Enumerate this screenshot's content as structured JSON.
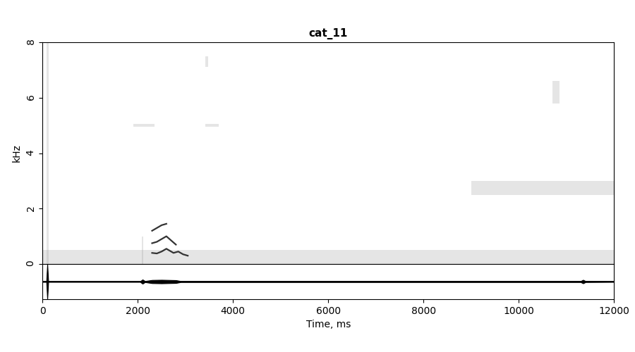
{
  "chart_data": {
    "type": "spectrogram",
    "title": "cat_11",
    "ylabel": "kHz",
    "xlabel": "Time, ms",
    "xlim": [
      0,
      12000
    ],
    "xticks": [
      0,
      2000,
      4000,
      6000,
      8000,
      10000,
      12000
    ],
    "ylim": [
      0,
      8
    ],
    "yticks": [
      0,
      2,
      4,
      6,
      8
    ],
    "tick_labels": "y",
    "color": "#333333",
    "contours": [
      {
        "x": [
          2300,
          2400,
          2500,
          2600,
          2700,
          2750,
          2850,
          2950,
          3050
        ],
        "values": [
          0.4,
          0.38,
          0.45,
          0.55,
          0.45,
          0.4,
          0.45,
          0.35,
          0.3
        ]
      },
      {
        "x": [
          2300,
          2400,
          2500,
          2600,
          2700,
          2800
        ],
        "values": [
          0.75,
          0.8,
          0.9,
          1.0,
          0.85,
          0.7
        ]
      },
      {
        "x": [
          2300,
          2400,
          2500,
          2600
        ],
        "values": [
          1.2,
          1.3,
          1.4,
          1.45
        ]
      }
    ],
    "bands": [
      {
        "t": [
          80,
          130
        ],
        "f": [
          0,
          8
        ]
      },
      {
        "t": [
          2080,
          2120
        ],
        "f": [
          0,
          1.0
        ]
      },
      {
        "t": [
          1900,
          2350
        ],
        "f": [
          4.95,
          5.05
        ]
      },
      {
        "t": [
          3420,
          3700
        ],
        "f": [
          4.95,
          5.05
        ]
      },
      {
        "t": [
          3420,
          3480
        ],
        "f": [
          7.1,
          7.5
        ]
      },
      {
        "t": [
          9000,
          12000
        ],
        "f": [
          2.5,
          3.0
        ]
      },
      {
        "t": [
          10700,
          10850
        ],
        "f": [
          5.8,
          6.6
        ]
      },
      {
        "t": [
          0,
          12000
        ],
        "f": [
          0,
          0.5
        ]
      }
    ],
    "waveform": {
      "ylim": [
        -1,
        1
      ],
      "x": [
        0,
        80,
        100,
        120,
        2050,
        2100,
        2150,
        2300,
        2500,
        2800,
        2900,
        11300,
        11350,
        11400,
        12000
      ],
      "values": [
        0.02,
        0.02,
        1.0,
        0.02,
        0.02,
        0.12,
        0.03,
        0.09,
        0.1,
        0.08,
        0.03,
        0.03,
        0.1,
        0.03,
        0.02
      ]
    }
  }
}
